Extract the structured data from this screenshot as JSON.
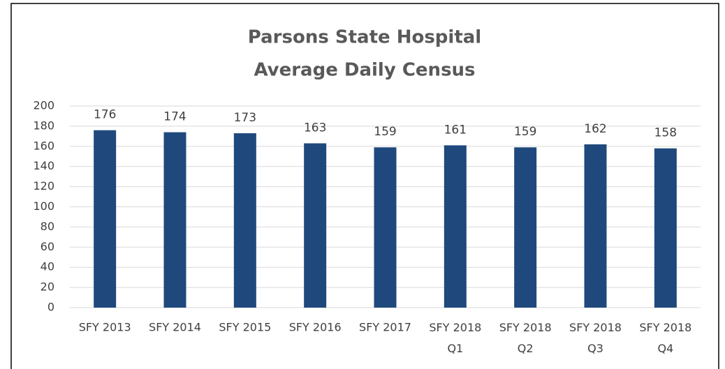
{
  "chart_data": {
    "type": "bar",
    "title": [
      "Parsons State Hospital",
      "Average Daily Census"
    ],
    "categories": [
      "SFY 2013",
      "SFY 2014",
      "SFY 2015",
      "SFY 2016",
      "SFY 2017",
      "SFY 2018 Q1",
      "SFY 2018 Q2",
      "SFY 2018 Q3",
      "SFY 2018 Q4"
    ],
    "values": [
      176,
      174,
      173,
      163,
      159,
      161,
      159,
      162,
      158
    ],
    "color": "#1f497d",
    "ylim": [
      0,
      200
    ],
    "yticks": [
      0,
      20,
      40,
      60,
      80,
      100,
      120,
      140,
      160,
      180,
      200
    ],
    "grid": true
  }
}
